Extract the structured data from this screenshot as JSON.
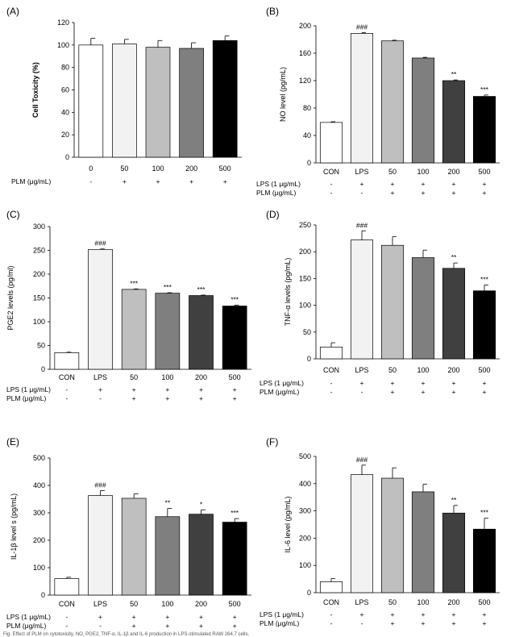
{
  "caption": "Fig. Effect of PLM on cytotoxicity, NO, PGE2, TNF-α, IL-1β and IL-6 production in LPS-stimulated RAW 264.7 cells.",
  "chart_data": [
    {
      "id": "A",
      "panel_label": "(A)",
      "type": "bar",
      "ylabel": "Cell Toxicity (%)",
      "ylim": [
        0,
        120
      ],
      "yticks": [
        0,
        20,
        40,
        60,
        80,
        100,
        120
      ],
      "categories": [
        "0",
        "50",
        "100",
        "200",
        "500"
      ],
      "values": [
        100,
        101,
        98,
        97,
        104
      ],
      "errors": [
        6,
        4,
        6,
        5,
        4
      ],
      "sig": [
        "",
        "",
        "",
        "",
        ""
      ],
      "colors": [
        "#ffffff",
        "#f2f2f2",
        "#bfbfbf",
        "#7f7f7f",
        "#000000"
      ],
      "rows": [
        {
          "label": "PLM (μg/mL)",
          "values": [
            "-",
            "+",
            "+",
            "+",
            "+"
          ]
        }
      ]
    },
    {
      "id": "B",
      "panel_label": "(B)",
      "type": "bar",
      "ylabel": "NO level (pg/mL)",
      "ylim": [
        0,
        200
      ],
      "yticks": [
        0,
        40,
        80,
        120,
        160,
        200
      ],
      "categories": [
        "CON",
        "LPS",
        "50",
        "100",
        "200",
        "500"
      ],
      "values": [
        59,
        189,
        178,
        153,
        120,
        97
      ],
      "errors": [
        1,
        1,
        1,
        1,
        1,
        2
      ],
      "sig": [
        "",
        "###",
        "",
        "",
        "**",
        "***"
      ],
      "colors": [
        "#ffffff",
        "#f2f2f2",
        "#bfbfbf",
        "#7f7f7f",
        "#404040",
        "#000000"
      ],
      "rows": [
        {
          "label": "LPS (1 μg/mL)",
          "values": [
            "-",
            "+",
            "+",
            "+",
            "+",
            "+"
          ]
        },
        {
          "label": "PLM (μg/mL)",
          "values": [
            "-",
            "-",
            "+",
            "+",
            "+",
            "+"
          ]
        }
      ]
    },
    {
      "id": "C",
      "panel_label": "(C)",
      "type": "bar",
      "ylabel": "PGE2 levels (pg/ml)",
      "ylim": [
        0,
        300
      ],
      "yticks": [
        0,
        50,
        100,
        150,
        200,
        250,
        300
      ],
      "categories": [
        "CON",
        "LPS",
        "50",
        "100",
        "200",
        "500"
      ],
      "values": [
        35,
        252,
        168,
        160,
        155,
        133
      ],
      "errors": [
        1,
        1,
        1,
        1,
        1,
        2
      ],
      "sig": [
        "",
        "###",
        "***",
        "***",
        "***",
        "***"
      ],
      "colors": [
        "#ffffff",
        "#f2f2f2",
        "#bfbfbf",
        "#7f7f7f",
        "#404040",
        "#000000"
      ],
      "rows": [
        {
          "label": "LPS (1 μg/mL)",
          "values": [
            "-",
            "+",
            "+",
            "+",
            "+",
            "+"
          ]
        },
        {
          "label": "PLM (μg/mL)",
          "values": [
            "-",
            "-",
            "+",
            "+",
            "+",
            "+"
          ]
        }
      ]
    },
    {
      "id": "D",
      "panel_label": "(D)",
      "type": "bar",
      "ylabel": "TNF-α levels (pg/mL)",
      "ylim": [
        0,
        250
      ],
      "yticks": [
        0,
        50,
        100,
        150,
        200,
        250
      ],
      "categories": [
        "CON",
        "LPS",
        "50",
        "100",
        "200",
        "500"
      ],
      "values": [
        22,
        222,
        212,
        189,
        169,
        127
      ],
      "errors": [
        8,
        17,
        16,
        14,
        10,
        11
      ],
      "sig": [
        "",
        "###",
        "",
        "",
        "**",
        "***"
      ],
      "colors": [
        "#ffffff",
        "#f2f2f2",
        "#bfbfbf",
        "#7f7f7f",
        "#404040",
        "#000000"
      ],
      "rows": [
        {
          "label": "LPS (1 μg/mL)",
          "values": [
            "-",
            "+",
            "+",
            "+",
            "+",
            "+"
          ]
        },
        {
          "label": "PLM (μg/mL)",
          "values": [
            "-",
            "-",
            "+",
            "+",
            "+",
            "+"
          ]
        }
      ]
    },
    {
      "id": "E",
      "panel_label": "(E)",
      "type": "bar",
      "ylabel": "IL-1β level s (pg/mL)",
      "ylim": [
        0,
        500
      ],
      "yticks": [
        0,
        100,
        200,
        300,
        400,
        500
      ],
      "categories": [
        "CON",
        "LPS",
        "50",
        "100",
        "200",
        "500"
      ],
      "values": [
        60,
        363,
        353,
        286,
        295,
        266
      ],
      "errors": [
        5,
        18,
        16,
        30,
        16,
        13
      ],
      "sig": [
        "",
        "###",
        "",
        "**",
        "*",
        "***"
      ],
      "colors": [
        "#ffffff",
        "#f2f2f2",
        "#bfbfbf",
        "#7f7f7f",
        "#404040",
        "#000000"
      ],
      "rows": [
        {
          "label": "LPS (1 μg/mL)",
          "values": [
            "-",
            "+",
            "+",
            "+",
            "+",
            "+"
          ]
        },
        {
          "label": "PLM (μg/mL)",
          "values": [
            "-",
            "-",
            "+",
            "+",
            "+",
            "+"
          ]
        }
      ]
    },
    {
      "id": "F",
      "panel_label": "(F)",
      "type": "bar",
      "ylabel": "IL-6 level (pg/mL)",
      "ylim": [
        0,
        500
      ],
      "yticks": [
        0,
        100,
        200,
        300,
        400,
        500
      ],
      "categories": [
        "CON",
        "LPS",
        "50",
        "100",
        "200",
        "500"
      ],
      "values": [
        40,
        433,
        420,
        370,
        292,
        233
      ],
      "errors": [
        12,
        35,
        38,
        28,
        28,
        40
      ],
      "sig": [
        "",
        "###",
        "",
        "",
        "**",
        "***"
      ],
      "colors": [
        "#ffffff",
        "#f2f2f2",
        "#bfbfbf",
        "#7f7f7f",
        "#404040",
        "#000000"
      ],
      "rows": [
        {
          "label": "LPS (1 μg/mL)",
          "values": [
            "-",
            "+",
            "+",
            "+",
            "+",
            "+"
          ]
        },
        {
          "label": "PLM (μg/mL)",
          "values": [
            "-",
            "-",
            "+",
            "+",
            "+",
            "+"
          ]
        }
      ]
    }
  ]
}
